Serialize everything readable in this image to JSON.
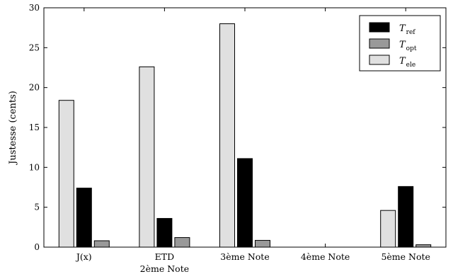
{
  "chart_data": {
    "type": "bar",
    "ylabel": "Justesse (cents)",
    "ylim": [
      0,
      30
    ],
    "yticks": [
      0,
      5,
      10,
      15,
      20,
      25,
      30
    ],
    "categories": [
      [
        "J(x)"
      ],
      [
        "ETD",
        "2ème Note"
      ],
      [
        "3ème Note"
      ],
      [
        "4ème Note"
      ],
      [
        "5ème Note"
      ]
    ],
    "series": [
      {
        "name": "T",
        "sub": "ele",
        "color": "#e0e0e0",
        "values": [
          18.4,
          22.6,
          28.0,
          0.0,
          4.6
        ]
      },
      {
        "name": "T",
        "sub": "ref",
        "color": "#000000",
        "values": [
          7.4,
          3.6,
          11.1,
          0.0,
          7.6
        ]
      },
      {
        "name": "T",
        "sub": "opt",
        "color": "#999999",
        "values": [
          0.8,
          1.2,
          0.85,
          0.0,
          0.3
        ]
      }
    ],
    "legend_order": [
      1,
      2,
      0
    ],
    "legend_position": "top-right",
    "grid": false
  }
}
